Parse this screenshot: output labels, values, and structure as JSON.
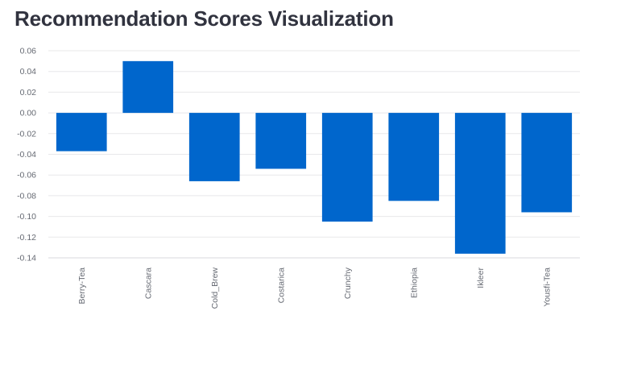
{
  "page": {
    "title": "Recommendation Scores Visualization"
  },
  "chart_data": {
    "type": "bar",
    "title": "Recommendation Scores Visualization",
    "xlabel": "",
    "ylabel": "",
    "categories": [
      "Berry-Tea",
      "Cascara",
      "Cold_Brew",
      "Costarica",
      "Crunchy",
      "Ethiopia",
      "Ikleer",
      "Yousfi-Tea"
    ],
    "values": [
      -0.037,
      0.05,
      -0.066,
      -0.054,
      -0.105,
      -0.085,
      -0.136,
      -0.096
    ],
    "yticks": [
      "0.06",
      "0.04",
      "0.02",
      "0.00",
      "-0.02",
      "-0.04",
      "-0.06",
      "-0.08",
      "-0.10",
      "-0.12",
      "-0.14"
    ],
    "ylim": [
      -0.14,
      0.06
    ],
    "grid": true,
    "legend": "none",
    "bar_color": "#0066cc"
  }
}
